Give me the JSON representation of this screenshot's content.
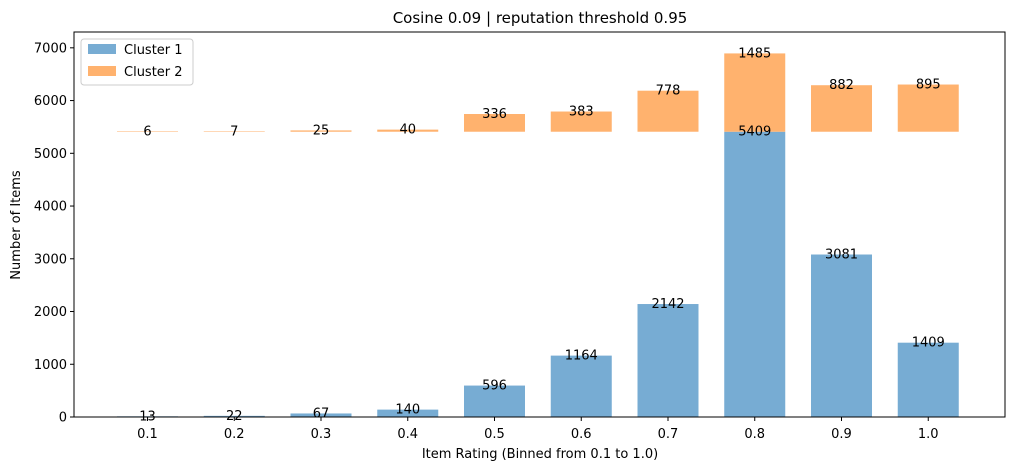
{
  "chart_data": {
    "type": "bar",
    "title": "Cosine 0.09 | reputation threshold 0.95",
    "xlabel": "Item Rating (Binned from 0.1 to 1.0)",
    "ylabel": "Number of Items",
    "categories": [
      "0.1",
      "0.2",
      "0.3",
      "0.4",
      "0.5",
      "0.6",
      "0.7",
      "0.8",
      "0.9",
      "1.0"
    ],
    "y_ticks": [
      0,
      1000,
      2000,
      3000,
      4000,
      5000,
      6000,
      7000
    ],
    "ylim": [
      0,
      7300
    ],
    "grid": false,
    "legend_position": "top-left",
    "stack_base_value": 5409,
    "series": [
      {
        "name": "Cluster 1",
        "color": "#77acd3",
        "values": [
          13,
          22,
          67,
          140,
          596,
          1164,
          2142,
          5409,
          3081,
          1409
        ]
      },
      {
        "name": "Cluster 2",
        "color": "#ffb26e",
        "values": [
          6,
          7,
          25,
          40,
          336,
          383,
          778,
          1485,
          882,
          895
        ]
      }
    ]
  }
}
